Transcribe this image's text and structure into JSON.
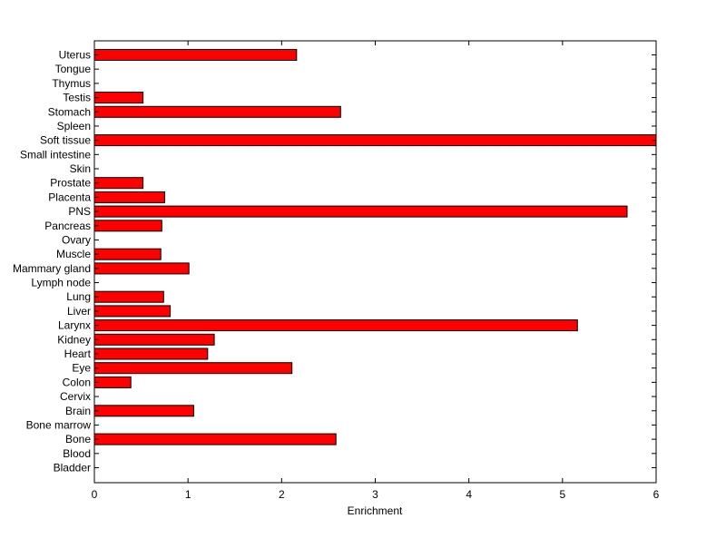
{
  "chart_data": {
    "type": "bar",
    "orientation": "horizontal",
    "xlabel": "Enrichment",
    "ylabel": "",
    "title": "",
    "xlim": [
      0,
      6
    ],
    "xticks": [
      "0",
      "1",
      "2",
      "3",
      "4",
      "5",
      "6"
    ],
    "categories": [
      "Bladder",
      "Blood",
      "Bone",
      "Bone marrow",
      "Brain",
      "Cervix",
      "Colon",
      "Eye",
      "Heart",
      "Kidney",
      "Larynx",
      "Liver",
      "Lung",
      "Lymph node",
      "Mammary gland",
      "Muscle",
      "Ovary",
      "Pancreas",
      "PNS",
      "Placenta",
      "Prostate",
      "Skin",
      "Small intestine",
      "Soft tissue",
      "Spleen",
      "Stomach",
      "Testis",
      "Thymus",
      "Tongue",
      "Uterus"
    ],
    "values": [
      0,
      0,
      2.58,
      0,
      1.06,
      0,
      0.39,
      2.11,
      1.21,
      1.28,
      5.16,
      0.81,
      0.74,
      0,
      1.01,
      0.71,
      0,
      0.72,
      5.69,
      0.75,
      0.52,
      0,
      0,
      6.0,
      0,
      2.63,
      0.52,
      0,
      0,
      2.16
    ],
    "bar_color": "#ff0000",
    "edge_color": "#000000",
    "grid": false,
    "legend": "none"
  }
}
